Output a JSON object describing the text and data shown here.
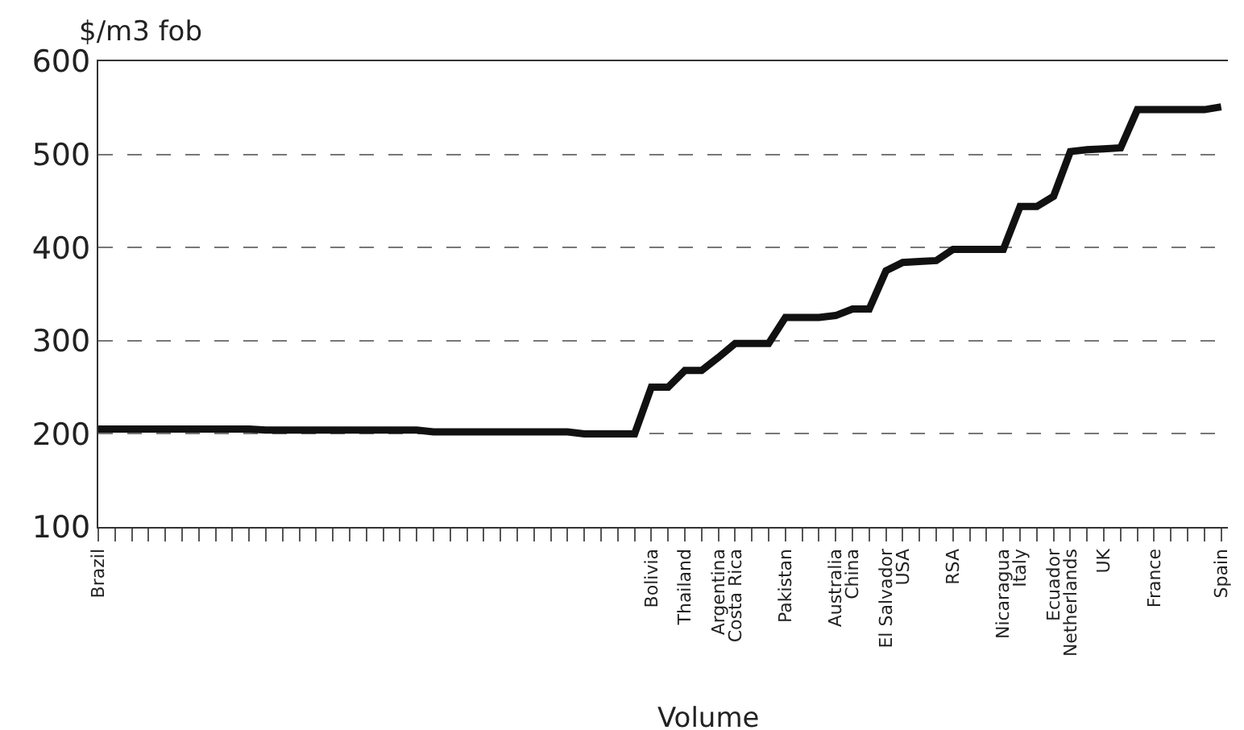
{
  "chart_data": {
    "type": "line",
    "ylabel": "$/m3 fob",
    "xlabel": "Volume",
    "categories": [
      "Brazil",
      null,
      null,
      null,
      null,
      null,
      null,
      null,
      null,
      null,
      null,
      null,
      null,
      null,
      null,
      null,
      null,
      null,
      null,
      null,
      null,
      null,
      null,
      null,
      null,
      null,
      null,
      null,
      null,
      null,
      null,
      null,
      null,
      "Bolivia",
      null,
      "Thailand",
      null,
      "Argentina",
      "Costa Rica",
      null,
      null,
      "Pakistan",
      null,
      null,
      "Australia",
      "China",
      null,
      "El Salvador",
      "USA",
      null,
      null,
      "RSA",
      null,
      null,
      "Nicaragua",
      "Italy",
      null,
      "Ecuador",
      "Netherlands",
      null,
      "UK",
      null,
      null,
      "France",
      null,
      null,
      null,
      "Spain"
    ],
    "series": [
      {
        "color": "#111111",
        "values": [
          205,
          205,
          205,
          205,
          205,
          205,
          205,
          205,
          205,
          205,
          204,
          204,
          204,
          204,
          204,
          204,
          204,
          204,
          204,
          204,
          202,
          202,
          202,
          202,
          202,
          202,
          202,
          202,
          202,
          200,
          200,
          200,
          200,
          250,
          250,
          268,
          268,
          282,
          297,
          297,
          297,
          325,
          325,
          325,
          327,
          334,
          334,
          375,
          384,
          385,
          386,
          398,
          398,
          398,
          398,
          444,
          444,
          455,
          503,
          505,
          506,
          507,
          548,
          548,
          548,
          548,
          548,
          551
        ]
      }
    ],
    "ylim": [
      100,
      600
    ],
    "yticks": [
      100,
      200,
      300,
      400,
      500,
      600
    ],
    "grid": "y",
    "line_style": "solid",
    "marker": "none"
  }
}
